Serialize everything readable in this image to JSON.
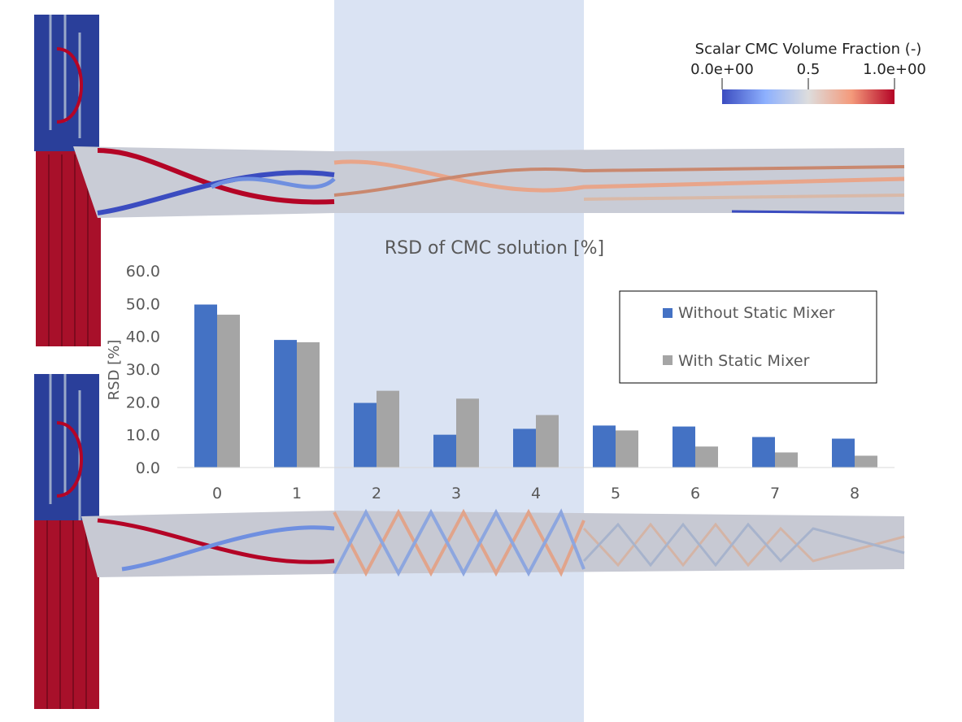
{
  "colorbar": {
    "title": "Scalar CMC Volume Fraction (-)",
    "ticks": [
      "0.0e+00",
      "0.5",
      "1.0e+00"
    ],
    "colors": [
      "#3b4cc0",
      "#dddddd",
      "#b40426"
    ]
  },
  "highlight_color": "#dae3f3",
  "chart_data": {
    "type": "bar",
    "title": "RSD of CMC solution [%]",
    "xlabel": "",
    "ylabel": "RSD [%]",
    "categories": [
      "0",
      "1",
      "2",
      "3",
      "4",
      "5",
      "6",
      "7",
      "8"
    ],
    "series": [
      {
        "name": "Without Static Mixer",
        "color": "#4472c4",
        "values": [
          49.7,
          38.9,
          19.7,
          10.0,
          11.8,
          12.8,
          12.5,
          9.3,
          8.8
        ]
      },
      {
        "name": "With Static Mixer",
        "color": "#a5a5a5",
        "values": [
          46.6,
          38.2,
          23.4,
          21.0,
          16.0,
          11.3,
          6.4,
          4.6,
          3.6
        ]
      }
    ],
    "ylim": [
      0,
      60
    ],
    "yticks": [
      "0.0",
      "10.0",
      "20.0",
      "30.0",
      "40.0",
      "50.0",
      "60.0"
    ],
    "legend_position": "top-right"
  }
}
